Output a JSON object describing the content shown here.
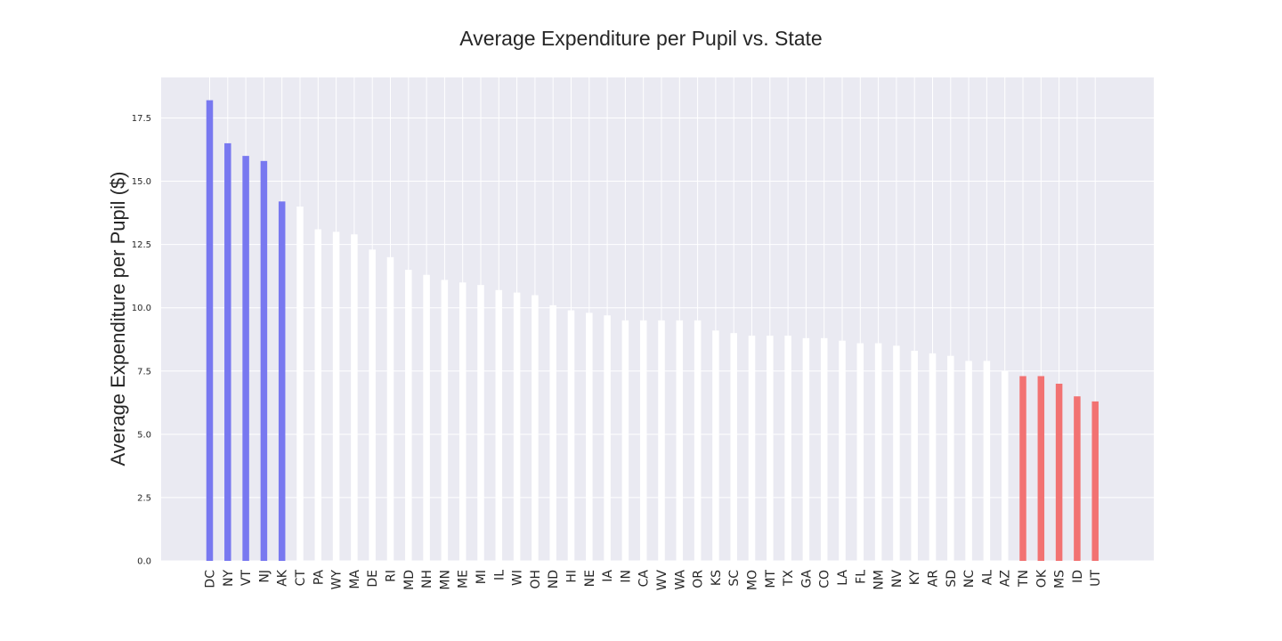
{
  "chart_data": {
    "type": "bar",
    "title": "Average Expenditure per Pupil vs. State",
    "xlabel": "",
    "ylabel": "Average Expenditure per Pupil ($)",
    "ylim": [
      0,
      19.1
    ],
    "yticks": [
      "0.0",
      "2.5",
      "5.0",
      "7.5",
      "10.0",
      "12.5",
      "15.0",
      "17.5"
    ],
    "grid": true,
    "legend": "none",
    "colors": {
      "background": "#EAEAF2",
      "grid": "#FFFFFF",
      "top": "#7878F0",
      "middle": "#FFFFFF",
      "bottom": "#F27272"
    },
    "categories": [
      "DC",
      "NY",
      "VT",
      "NJ",
      "AK",
      "CT",
      "PA",
      "WY",
      "MA",
      "DE",
      "RI",
      "MD",
      "NH",
      "MN",
      "ME",
      "MI",
      "IL",
      "WI",
      "OH",
      "ND",
      "HI",
      "NE",
      "IA",
      "IN",
      "CA",
      "WV",
      "WA",
      "OR",
      "KS",
      "SC",
      "MO",
      "MT",
      "TX",
      "GA",
      "CO",
      "LA",
      "FL",
      "NM",
      "NV",
      "KY",
      "AR",
      "SD",
      "NC",
      "AL",
      "AZ",
      "TN",
      "OK",
      "MS",
      "ID",
      "UT"
    ],
    "values": [
      18.2,
      16.5,
      16.0,
      15.8,
      14.2,
      14.0,
      13.1,
      13.0,
      12.9,
      12.3,
      12.0,
      11.5,
      11.3,
      11.1,
      11.0,
      10.9,
      10.7,
      10.6,
      10.5,
      10.1,
      9.9,
      9.8,
      9.7,
      9.5,
      9.5,
      9.5,
      9.5,
      9.5,
      9.1,
      9.0,
      8.9,
      8.9,
      8.9,
      8.8,
      8.8,
      8.7,
      8.6,
      8.6,
      8.5,
      8.3,
      8.2,
      8.1,
      7.9,
      7.9,
      7.5,
      7.3,
      7.3,
      7.0,
      6.5,
      6.3
    ],
    "bar_colors": [
      "top",
      "top",
      "top",
      "top",
      "top",
      "middle",
      "middle",
      "middle",
      "middle",
      "middle",
      "middle",
      "middle",
      "middle",
      "middle",
      "middle",
      "middle",
      "middle",
      "middle",
      "middle",
      "middle",
      "middle",
      "middle",
      "middle",
      "middle",
      "middle",
      "middle",
      "middle",
      "middle",
      "middle",
      "middle",
      "middle",
      "middle",
      "middle",
      "middle",
      "middle",
      "middle",
      "middle",
      "middle",
      "middle",
      "middle",
      "middle",
      "middle",
      "middle",
      "middle",
      "middle",
      "bottom",
      "bottom",
      "bottom",
      "bottom",
      "bottom"
    ]
  }
}
